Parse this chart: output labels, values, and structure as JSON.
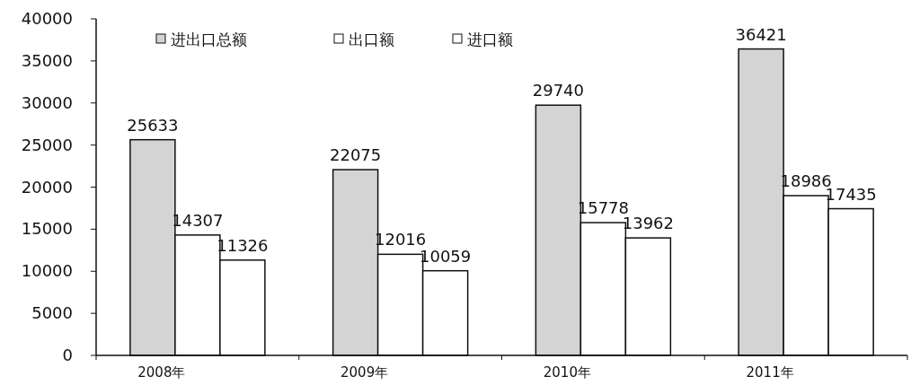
{
  "chart_data": {
    "type": "bar",
    "categories": [
      "2008年",
      "2009年",
      "2010年",
      "2011年"
    ],
    "series": [
      {
        "name": "进出口总额",
        "color": "#d4d4d4",
        "values": [
          25633,
          22075,
          29740,
          36421
        ]
      },
      {
        "name": "出口额",
        "color": "#ffffff",
        "values": [
          14307,
          12016,
          15778,
          18986
        ]
      },
      {
        "name": "进口额",
        "color": "#ffffff",
        "values": [
          11326,
          10059,
          13962,
          17435
        ]
      }
    ],
    "ylim": [
      0,
      40000
    ],
    "yticks": [
      0,
      5000,
      10000,
      15000,
      20000,
      25000,
      30000,
      35000,
      40000
    ],
    "data_labels": true,
    "legend": "top",
    "grid": false
  }
}
